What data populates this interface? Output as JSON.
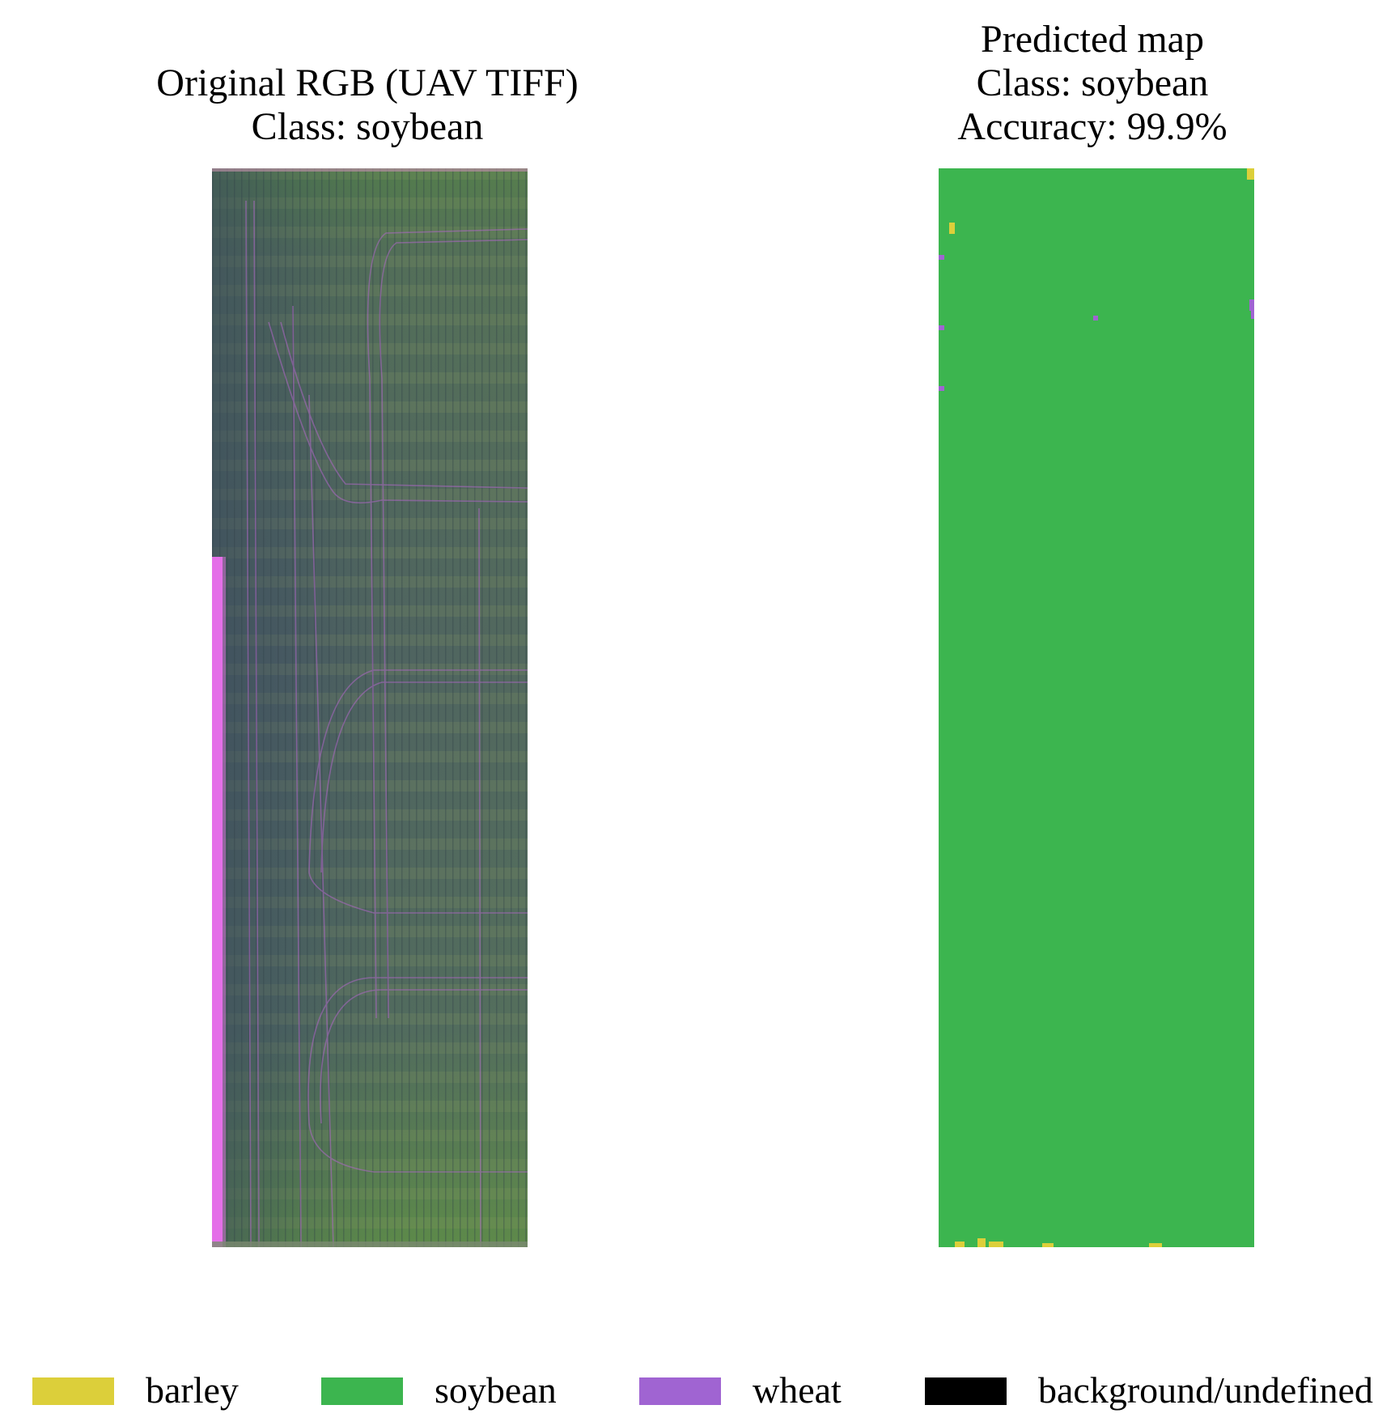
{
  "left_panel": {
    "title_lines": [
      "Original RGB (UAV TIFF)",
      "Class: soybean"
    ]
  },
  "right_panel": {
    "title_lines": [
      "Predicted map",
      "Class: soybean",
      "Accuracy: 99.9%"
    ]
  },
  "legend": {
    "items": [
      {
        "label": "barley",
        "color": "#dccf3a"
      },
      {
        "label": "soybean",
        "color": "#3cb54f"
      },
      {
        "label": "wheat",
        "color": "#a064d2"
      },
      {
        "label": "background/undefined",
        "color": "#000000"
      }
    ]
  },
  "colors": {
    "field_base": "#4b5f62",
    "field_green": "#5e8a48",
    "field_light": "#8a9a6a",
    "tracks": "#b067c8",
    "edge_strip": "#e46fe8",
    "prediction_soybean": "#3cb54f",
    "prediction_barley": "#dccf3a",
    "prediction_wheat": "#a064d2"
  }
}
